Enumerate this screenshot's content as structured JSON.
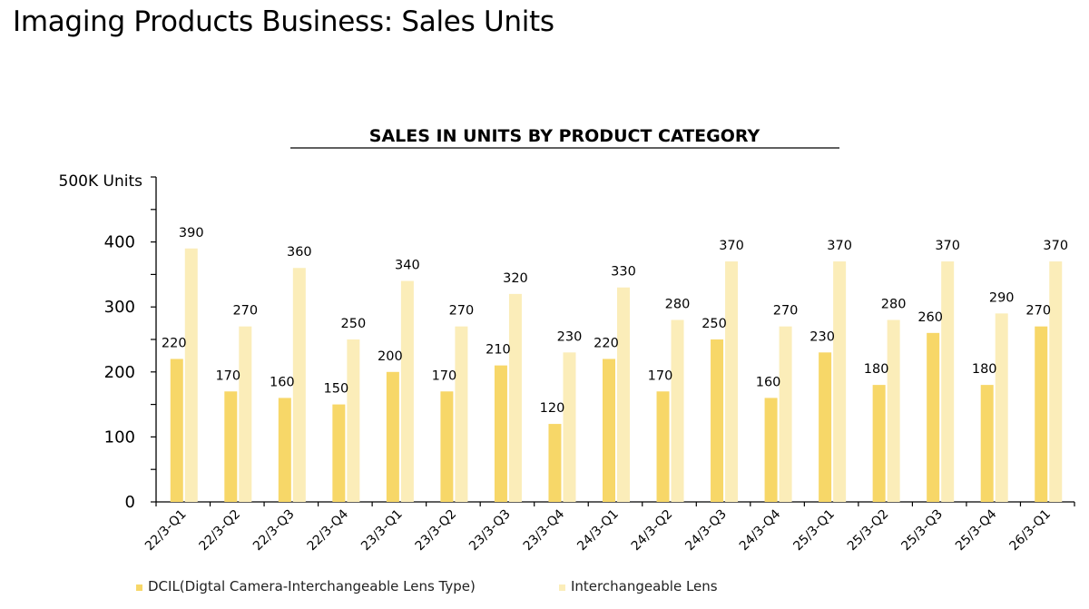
{
  "page": {
    "title": "Imaging Products Business: Sales Units"
  },
  "chart_data": {
    "type": "bar",
    "title": "SALES IN UNITS BY PRODUCT CATEGORY",
    "unit_label": "500K Units",
    "xlabel": "",
    "ylabel": "",
    "ylim": [
      0,
      500
    ],
    "yticks": [
      0,
      100,
      200,
      300,
      400
    ],
    "grid": false,
    "legend_position": "bottom-left",
    "categories": [
      "22/3-Q1",
      "22/3-Q2",
      "22/3-Q3",
      "22/3-Q4",
      "23/3-Q1",
      "23/3-Q2",
      "23/3-Q3",
      "23/3-Q4",
      "24/3-Q1",
      "24/3-Q2",
      "24/3-Q3",
      "24/3-Q4",
      "25/3-Q1",
      "25/3-Q2",
      "25/3-Q3",
      "25/3-Q4",
      "26/3-Q1"
    ],
    "series": [
      {
        "name": "DCIL(Digtal Camera-Interchangeable Lens Type)",
        "color": "#F7D768",
        "values": [
          220,
          170,
          160,
          150,
          200,
          170,
          210,
          120,
          220,
          170,
          250,
          160,
          230,
          180,
          260,
          180,
          270
        ]
      },
      {
        "name": "Interchangeable Lens",
        "color": "#FBEDB9",
        "values": [
          390,
          270,
          360,
          250,
          340,
          270,
          320,
          230,
          330,
          280,
          370,
          270,
          370,
          280,
          370,
          290,
          370
        ]
      }
    ]
  }
}
